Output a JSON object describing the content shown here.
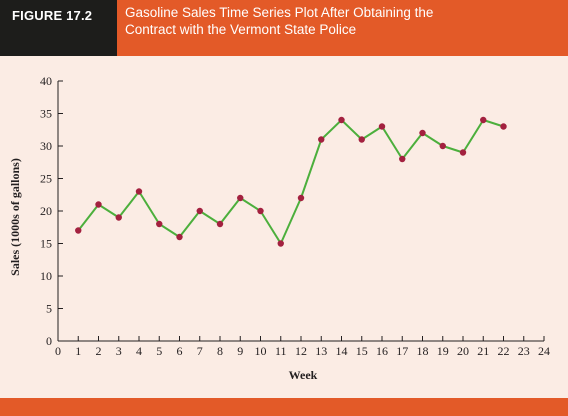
{
  "figure": {
    "label": "FIGURE 17.2",
    "title_line1": "Gasoline Sales Time Series Plot After Obtaining the",
    "title_line2": "Contract with the Vermont State Police"
  },
  "colors": {
    "header": "#e35a28",
    "label_bg": "#1d1d1b",
    "plot_bg": "#fbece4",
    "line": "#4caf3c",
    "marker": "#a3213f"
  },
  "chart_data": {
    "type": "line",
    "xlabel": "Week",
    "ylabel": "Sales (1000s of gallons)",
    "xlim": [
      0,
      24
    ],
    "ylim": [
      0,
      40
    ],
    "x_ticks": [
      0,
      1,
      2,
      3,
      4,
      5,
      6,
      7,
      8,
      9,
      10,
      11,
      12,
      13,
      14,
      15,
      16,
      17,
      18,
      19,
      20,
      21,
      22,
      23,
      24
    ],
    "y_ticks": [
      0,
      5,
      10,
      15,
      20,
      25,
      30,
      35,
      40
    ],
    "grid": false,
    "legend": "none",
    "x": [
      1,
      2,
      3,
      4,
      5,
      6,
      7,
      8,
      9,
      10,
      11,
      12,
      13,
      14,
      15,
      16,
      17,
      18,
      19,
      20,
      21,
      22
    ],
    "values": [
      17,
      21,
      19,
      23,
      18,
      16,
      20,
      18,
      22,
      20,
      15,
      22,
      31,
      34,
      31,
      33,
      28,
      32,
      30,
      29,
      34,
      33
    ]
  }
}
